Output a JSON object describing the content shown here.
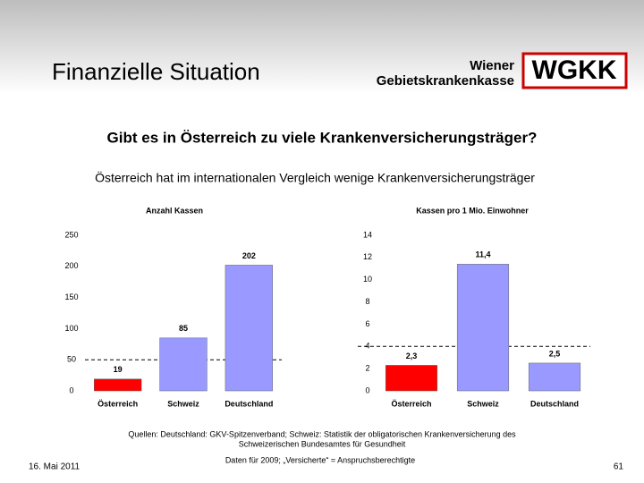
{
  "header": {
    "title": "Finanzielle Situation",
    "logo_text": [
      "Wiener",
      "Gebietskrankenkasse"
    ],
    "logo": "WGKK"
  },
  "question": "Gibt es in Österreich zu viele Krankenversicherungsträger?",
  "subtitle": "Österreich hat im internationalen Vergleich wenige Krankenversicherungsträger",
  "chart_data": [
    {
      "type": "bar",
      "title": "Anzahl Kassen",
      "categories": [
        "Österreich",
        "Schweiz",
        "Deutschland"
      ],
      "values": [
        19,
        85,
        202
      ],
      "colors": [
        "#ff0000",
        "#9999ff",
        "#9999ff"
      ],
      "ylim": [
        0,
        250
      ],
      "yticks": [
        0,
        50,
        100,
        150,
        200,
        250
      ],
      "reference_line": 50
    },
    {
      "type": "bar",
      "title": "Kassen pro 1 Mio. Einwohner",
      "categories": [
        "Österreich",
        "Schweiz",
        "Deutschland"
      ],
      "values": [
        2.3,
        11.4,
        2.5
      ],
      "value_labels": [
        "2,3",
        "11,4",
        "2,5"
      ],
      "colors": [
        "#ff0000",
        "#9999ff",
        "#9999ff"
      ],
      "ylim": [
        0,
        14
      ],
      "yticks": [
        0,
        2,
        4,
        6,
        8,
        10,
        12,
        14
      ],
      "reference_line": 4
    }
  ],
  "footer": {
    "sources": [
      "Quellen: Deutschland: GKV-Spitzenverband; Schweiz: Statistik der obligatorischen Krankenversicherung des",
      "Schweizerischen Bundesamtes für Gesundheit"
    ],
    "note": "Daten für 2009; „Versicherte“ = Anspruchsberechtigte",
    "date": "16. Mai 2011",
    "page": "61"
  }
}
